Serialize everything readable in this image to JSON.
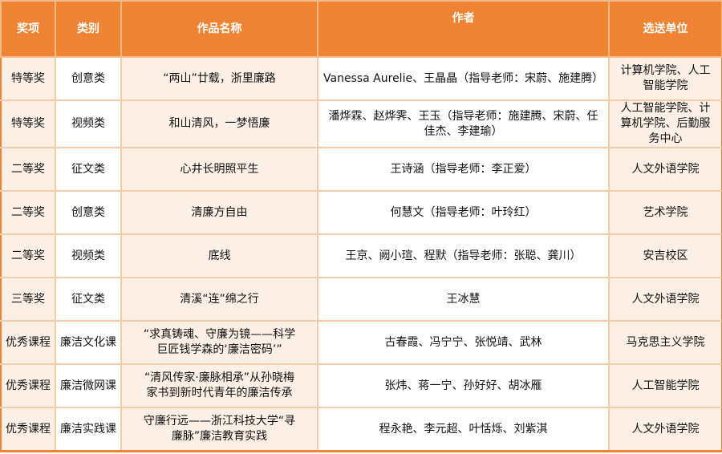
{
  "header": {
    "columns": [
      "奖项",
      "类别",
      "作品名称",
      "作者",
      "选送单位"
    ]
  },
  "colors": {
    "header_bg": "#EE8433",
    "shaded_col": "#FCEFE6",
    "border": "#F6CBA8"
  },
  "rows": [
    {
      "award": "特等奖",
      "category": "创意类",
      "title": "“两山”廿载，浙里廉路",
      "authors": "Vanessa Aurelie、王晶晶（指导老师：宋蔚、施建腾）",
      "unit": "计算机学院、人工智能学院"
    },
    {
      "award": "特等奖",
      "category": "视频类",
      "title": "和山清风，一梦悟廉",
      "authors": "潘烨霖、赵烨霁、王玉（指导老师：施建腾、宋蔚、任佳杰、李建瑜）",
      "unit": "人工智能学院、计算机学院、后勤服务中心"
    },
    {
      "award": "二等奖",
      "category": "征文类",
      "title": "心井长明照平生",
      "authors": "王诗涵（指导老师：李正爱）",
      "unit": "人文外语学院"
    },
    {
      "award": "二等奖",
      "category": "创意类",
      "title": "清廉方自由",
      "authors": "何慧文（指导老师：叶玲红）",
      "unit": "艺术学院"
    },
    {
      "award": "二等奖",
      "category": "视频类",
      "title": "底线",
      "authors": "王京、阙小瑄、程默（指导老师：张聪、龚川）",
      "unit": "安吉校区"
    },
    {
      "award": "三等奖",
      "category": "征文类",
      "title": "清溪“连”绵之行",
      "authors": "王冰慧",
      "unit": "人文外语学院"
    },
    {
      "award": "优秀课程",
      "category": "廉洁文化课",
      "title": "“求真铸魂、守廉为镜——科学巨匠钱学森的‘廉洁密码’”",
      "authors": "古春霞、冯宁宁、张悦靖、武林",
      "unit": "马克思主义学院"
    },
    {
      "award": "优秀课程",
      "category": "廉洁微网课",
      "title": "“清风传家·廉脉相承”从孙晓梅家书到新时代青年的廉洁传承",
      "authors": "张炜、蒋一宁、孙好好、胡冰雁",
      "unit": "人工智能学院"
    },
    {
      "award": "优秀课程",
      "category": "廉洁实践课",
      "title": "守廉行远——浙江科技大学“寻廉脉”廉洁教育实践",
      "authors": "程永艳、李元超、叶恬烁、刘紫淇",
      "unit": "人文外语学院"
    }
  ]
}
